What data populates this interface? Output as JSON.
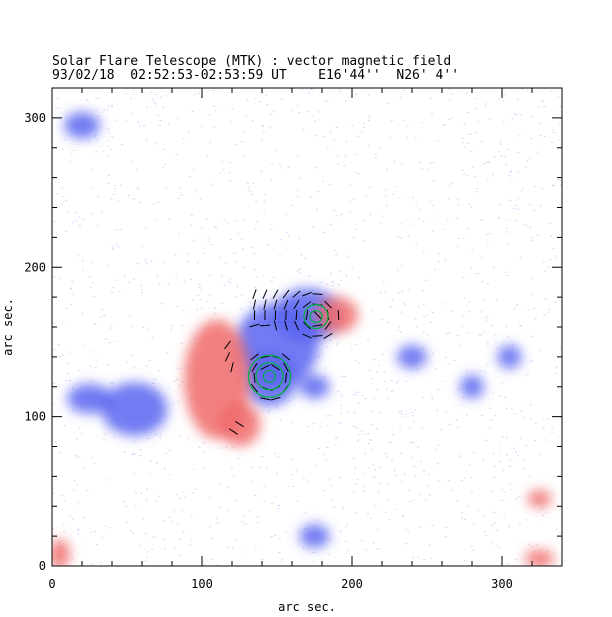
{
  "header": {
    "title": "Solar Flare Telescope (MTK) : vector magnetic field",
    "date": "93/02/18",
    "time_range": "02:52:53-02:53:59 UT",
    "position": "E16'44''  N26' 4''"
  },
  "axes": {
    "x_label": "arc sec.",
    "y_label": "arc sec.",
    "x_range": [
      0,
      340
    ],
    "y_range": [
      0,
      320
    ],
    "x_ticks": [
      "0",
      "100",
      "200",
      "300"
    ],
    "y_ticks": [
      "0",
      "100",
      "200",
      "300"
    ]
  },
  "colors": {
    "positive_polarity": "#f06a6a",
    "negative_polarity": "#5a64f0",
    "contour": "#00b040",
    "vector": "#000000"
  },
  "regions": {
    "negative": [
      {
        "cx": 150,
        "cy": 148,
        "rx": 28,
        "ry": 28
      },
      {
        "cx": 170,
        "cy": 168,
        "rx": 22,
        "ry": 18
      },
      {
        "cx": 145,
        "cy": 125,
        "rx": 18,
        "ry": 18
      },
      {
        "cx": 55,
        "cy": 105,
        "rx": 22,
        "ry": 18
      },
      {
        "cx": 25,
        "cy": 112,
        "rx": 15,
        "ry": 10
      },
      {
        "cx": 20,
        "cy": 295,
        "rx": 12,
        "ry": 9
      },
      {
        "cx": 305,
        "cy": 140,
        "rx": 8,
        "ry": 8
      },
      {
        "cx": 280,
        "cy": 120,
        "rx": 8,
        "ry": 8
      },
      {
        "cx": 240,
        "cy": 140,
        "rx": 10,
        "ry": 8
      },
      {
        "cx": 175,
        "cy": 120,
        "rx": 10,
        "ry": 8
      },
      {
        "cx": 175,
        "cy": 20,
        "rx": 10,
        "ry": 8
      }
    ],
    "positive": [
      {
        "cx": 110,
        "cy": 125,
        "rx": 22,
        "ry": 40
      },
      {
        "cx": 125,
        "cy": 95,
        "rx": 14,
        "ry": 15
      },
      {
        "cx": 190,
        "cy": 168,
        "rx": 14,
        "ry": 12
      },
      {
        "cx": 325,
        "cy": 45,
        "rx": 8,
        "ry": 6
      },
      {
        "cx": 5,
        "cy": 8,
        "rx": 7,
        "ry": 10
      },
      {
        "cx": 325,
        "cy": 5,
        "rx": 10,
        "ry": 6
      }
    ]
  },
  "contours": [
    {
      "cx": 145,
      "cy": 127,
      "r": [
        4,
        9,
        14
      ]
    },
    {
      "cx": 176,
      "cy": 167,
      "r": [
        4,
        8
      ]
    }
  ]
}
